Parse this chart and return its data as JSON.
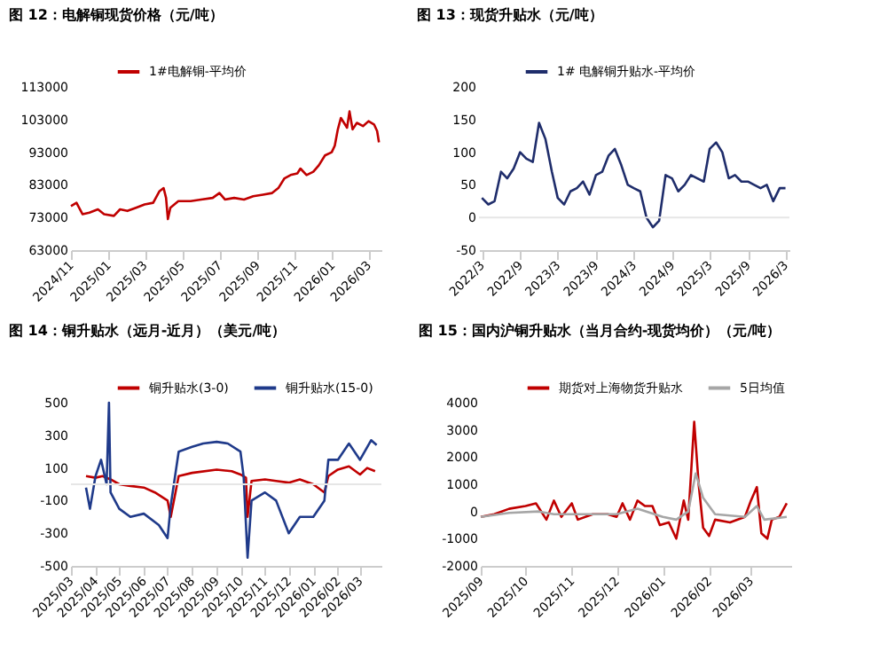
{
  "chart_data": [
    {
      "type": "line",
      "title": "图 12：电解铜现货价格（元/吨）",
      "legend": "top",
      "grid": false,
      "xlim": [
        "2024-11-01",
        "2026-03-22"
      ],
      "xticks": [
        {
          "value": "2024-11-01",
          "label": "2024/11"
        },
        {
          "value": "2025-01-01",
          "label": "2025/01"
        },
        {
          "value": "2025-03-01",
          "label": "2025/03"
        },
        {
          "value": "2025-05-01",
          "label": "2025/05"
        },
        {
          "value": "2025-07-01",
          "label": "2025/07"
        },
        {
          "value": "2025-09-01",
          "label": "2025/09"
        },
        {
          "value": "2025-11-01",
          "label": "2025/11"
        },
        {
          "value": "2026-01-01",
          "label": "2026/01"
        },
        {
          "value": "2026-03-01",
          "label": "2026/03"
        }
      ],
      "ylim": [
        63000,
        113000
      ],
      "yticks": [
        63000,
        73000,
        83000,
        93000,
        103000,
        113000
      ],
      "series": [
        {
          "name": "1#电解铜-平均价",
          "color": "#c00000",
          "x": [
            "2024-11-01",
            "2024-11-10",
            "2024-11-20",
            "2024-12-01",
            "2024-12-15",
            "2024-12-25",
            "2025-01-10",
            "2025-01-20",
            "2025-02-01",
            "2025-02-15",
            "2025-03-01",
            "2025-03-15",
            "2025-03-25",
            "2025-04-01",
            "2025-04-05",
            "2025-04-08",
            "2025-04-12",
            "2025-04-25",
            "2025-05-15",
            "2025-06-01",
            "2025-06-20",
            "2025-07-01",
            "2025-07-10",
            "2025-07-25",
            "2025-08-10",
            "2025-08-25",
            "2025-09-10",
            "2025-09-25",
            "2025-10-05",
            "2025-10-15",
            "2025-10-25",
            "2025-11-05",
            "2025-11-10",
            "2025-11-20",
            "2025-12-01",
            "2025-12-10",
            "2025-12-20",
            "2025-12-31",
            "2026-01-05",
            "2026-01-10",
            "2026-01-15",
            "2026-01-20",
            "2026-01-25",
            "2026-01-29",
            "2026-02-03",
            "2026-02-10",
            "2026-02-20",
            "2026-03-01",
            "2026-03-10",
            "2026-03-15",
            "2026-03-18"
          ],
          "values": [
            76500,
            77500,
            74000,
            74500,
            75500,
            74000,
            73500,
            75500,
            75000,
            76000,
            77000,
            77500,
            81000,
            82000,
            79000,
            72500,
            76000,
            78000,
            78000,
            78500,
            79000,
            80500,
            78500,
            79000,
            78500,
            79500,
            80000,
            80500,
            82000,
            85000,
            86000,
            86500,
            88000,
            86000,
            87000,
            89000,
            92000,
            93000,
            95000,
            100000,
            103500,
            102000,
            100500,
            105500,
            100000,
            102000,
            101000,
            102500,
            101500,
            99500,
            96000
          ]
        }
      ]
    },
    {
      "type": "line",
      "title": "图 13：现货升贴水（元/吨）",
      "legend": "top",
      "grid": false,
      "xlim": [
        "2022-02-15",
        "2026-03-20"
      ],
      "xticks": [
        {
          "value": "2022-03-01",
          "label": "2022/3"
        },
        {
          "value": "2022-09-01",
          "label": "2022/9"
        },
        {
          "value": "2023-03-01",
          "label": "2023/3"
        },
        {
          "value": "2023-09-01",
          "label": "2023/9"
        },
        {
          "value": "2024-03-01",
          "label": "2024/3"
        },
        {
          "value": "2024-09-01",
          "label": "2024/9"
        },
        {
          "value": "2025-03-01",
          "label": "2025/3"
        },
        {
          "value": "2025-09-01",
          "label": "2025/9"
        },
        {
          "value": "2026-03-01",
          "label": "2026/3"
        }
      ],
      "ylim": [
        -50,
        200
      ],
      "yticks": [
        -50,
        0,
        50,
        100,
        150,
        200
      ],
      "ref_lines": [
        {
          "axis": "y",
          "value": 0,
          "color": "#e6e6e6"
        }
      ],
      "series": [
        {
          "name": "1# 电解铜升贴水-平均价",
          "color": "#1f2d6b",
          "x": [
            "2022-03-01",
            "2022-04-01",
            "2022-05-01",
            "2022-06-01",
            "2022-07-01",
            "2022-08-01",
            "2022-09-01",
            "2022-10-01",
            "2022-11-01",
            "2022-12-01",
            "2023-01-01",
            "2023-02-01",
            "2023-03-01",
            "2023-04-01",
            "2023-05-01",
            "2023-06-01",
            "2023-07-01",
            "2023-08-01",
            "2023-09-01",
            "2023-10-01",
            "2023-11-01",
            "2023-12-01",
            "2024-01-01",
            "2024-02-01",
            "2024-03-01",
            "2024-04-01",
            "2024-05-01",
            "2024-06-01",
            "2024-07-01",
            "2024-08-01",
            "2024-09-01",
            "2024-10-01",
            "2024-11-01",
            "2024-12-01",
            "2025-01-01",
            "2025-02-01",
            "2025-03-01",
            "2025-04-01",
            "2025-05-01",
            "2025-06-01",
            "2025-07-01",
            "2025-08-01",
            "2025-09-01",
            "2025-10-01",
            "2025-11-01",
            "2025-12-01",
            "2026-01-01",
            "2026-02-01",
            "2026-03-01"
          ],
          "values": [
            30,
            20,
            25,
            70,
            60,
            75,
            100,
            90,
            85,
            145,
            120,
            70,
            30,
            20,
            40,
            45,
            55,
            35,
            65,
            70,
            95,
            105,
            80,
            50,
            45,
            40,
            0,
            -15,
            -5,
            65,
            60,
            40,
            50,
            65,
            60,
            55,
            105,
            115,
            100,
            60,
            65,
            55,
            55,
            50,
            45,
            50,
            25,
            45,
            45
          ]
        }
      ]
    },
    {
      "type": "line",
      "title": "图 14：铜升贴水（远月-近月）（美元/吨）",
      "legend": "top",
      "grid": false,
      "xlim": [
        "2025-03-01",
        "2026-03-28"
      ],
      "xticks": [
        {
          "value": "2025-03-01",
          "label": "2025/03"
        },
        {
          "value": "2025-04-01",
          "label": "2025/04"
        },
        {
          "value": "2025-05-01",
          "label": "2025/05"
        },
        {
          "value": "2025-06-01",
          "label": "2025/06"
        },
        {
          "value": "2025-07-01",
          "label": "2025/07"
        },
        {
          "value": "2025-08-01",
          "label": "2025/08"
        },
        {
          "value": "2025-09-01",
          "label": "2025/09"
        },
        {
          "value": "2025-10-01",
          "label": "2025/10"
        },
        {
          "value": "2025-11-01",
          "label": "2025/11"
        },
        {
          "value": "2025-12-01",
          "label": "2025/12"
        },
        {
          "value": "2026-01-01",
          "label": "2026/01"
        },
        {
          "value": "2026-02-01",
          "label": "2026/02"
        },
        {
          "value": "2026-03-01",
          "label": "2026/03"
        }
      ],
      "ylim": [
        -500,
        500
      ],
      "yticks": [
        -500,
        -300,
        -100,
        100,
        300,
        500
      ],
      "ref_lines": [
        {
          "axis": "y",
          "value": 0,
          "color": "#e6e6e6"
        }
      ],
      "series": [
        {
          "name": "铜升贴水(3-0)",
          "color": "#c00000",
          "x": [
            "2025-03-20",
            "2025-04-01",
            "2025-04-10",
            "2025-04-20",
            "2025-05-01",
            "2025-05-15",
            "2025-06-01",
            "2025-06-15",
            "2025-07-01",
            "2025-07-05",
            "2025-07-15",
            "2025-08-01",
            "2025-09-01",
            "2025-09-20",
            "2025-10-01",
            "2025-10-08",
            "2025-10-10",
            "2025-10-15",
            "2025-11-01",
            "2025-11-15",
            "2025-12-01",
            "2025-12-15",
            "2026-01-01",
            "2026-01-15",
            "2026-01-20",
            "2026-02-01",
            "2026-02-15",
            "2026-03-01",
            "2026-03-10",
            "2026-03-20"
          ],
          "values": [
            50,
            40,
            50,
            30,
            0,
            -10,
            -20,
            -50,
            -100,
            -200,
            50,
            70,
            90,
            80,
            60,
            40,
            -200,
            20,
            30,
            20,
            10,
            30,
            0,
            -50,
            50,
            90,
            110,
            60,
            100,
            80
          ]
        },
        {
          "name": "铜升贴水(15-0)",
          "color": "#1f3a8a",
          "x": [
            "2025-03-20",
            "2025-03-25",
            "2025-04-01",
            "2025-04-08",
            "2025-04-15",
            "2025-04-18",
            "2025-04-20",
            "2025-05-01",
            "2025-05-15",
            "2025-06-01",
            "2025-06-20",
            "2025-07-01",
            "2025-07-05",
            "2025-07-15",
            "2025-08-01",
            "2025-08-15",
            "2025-09-01",
            "2025-09-15",
            "2025-10-01",
            "2025-10-05",
            "2025-10-10",
            "2025-10-15",
            "2025-11-01",
            "2025-11-15",
            "2025-12-01",
            "2025-12-15",
            "2026-01-01",
            "2026-01-15",
            "2026-01-20",
            "2026-02-01",
            "2026-02-15",
            "2026-03-01",
            "2026-03-15",
            "2026-03-22"
          ],
          "values": [
            -20,
            -150,
            50,
            150,
            0,
            500,
            -50,
            -150,
            -200,
            -180,
            -250,
            -330,
            -130,
            200,
            230,
            250,
            260,
            250,
            200,
            50,
            -450,
            -100,
            -50,
            -100,
            -300,
            -200,
            -200,
            -100,
            150,
            150,
            250,
            150,
            270,
            240
          ]
        }
      ]
    },
    {
      "type": "line",
      "title": "图 15：国内沪铜升贴水（当月合约-现货均价）（元/吨）",
      "legend": "top",
      "grid": false,
      "xlim": [
        "2025-09-01",
        "2026-03-28"
      ],
      "xticks": [
        {
          "value": "2025-09-01",
          "label": "2025/09"
        },
        {
          "value": "2025-10-01",
          "label": "2025/10"
        },
        {
          "value": "2025-11-01",
          "label": "2025/11"
        },
        {
          "value": "2025-12-01",
          "label": "2025/12"
        },
        {
          "value": "2026-01-01",
          "label": "2026/01"
        },
        {
          "value": "2026-02-01",
          "label": "2026/02"
        },
        {
          "value": "2026-03-01",
          "label": "2026/03"
        }
      ],
      "ylim": [
        -2000,
        4000
      ],
      "yticks": [
        -2000,
        -1000,
        0,
        1000,
        2000,
        3000,
        4000
      ],
      "series": [
        {
          "name": "期货对上海物货升贴水",
          "color": "#c00000",
          "x": [
            "2025-09-01",
            "2025-09-10",
            "2025-09-20",
            "2025-10-01",
            "2025-10-08",
            "2025-10-15",
            "2025-10-20",
            "2025-10-25",
            "2025-11-01",
            "2025-11-05",
            "2025-11-15",
            "2025-11-25",
            "2025-12-01",
            "2025-12-05",
            "2025-12-10",
            "2025-12-15",
            "2025-12-20",
            "2025-12-25",
            "2025-12-30",
            "2026-01-05",
            "2026-01-10",
            "2026-01-15",
            "2026-01-18",
            "2026-01-22",
            "2026-01-25",
            "2026-01-28",
            "2026-02-01",
            "2026-02-05",
            "2026-02-15",
            "2026-02-25",
            "2026-03-01",
            "2026-03-05",
            "2026-03-08",
            "2026-03-12",
            "2026-03-15",
            "2026-03-20",
            "2026-03-25"
          ],
          "values": [
            -200,
            -100,
            100,
            200,
            300,
            -300,
            400,
            -200,
            300,
            -300,
            -100,
            -100,
            -200,
            300,
            -300,
            400,
            200,
            200,
            -500,
            -400,
            -1000,
            400,
            -300,
            3300,
            1000,
            -600,
            -900,
            -300,
            -400,
            -200,
            400,
            900,
            -800,
            -1000,
            -300,
            -200,
            300
          ]
        },
        {
          "name": "5日均值",
          "color": "#a6a6a6",
          "x": [
            "2025-09-01",
            "2025-09-20",
            "2025-10-10",
            "2025-10-20",
            "2025-11-10",
            "2025-12-01",
            "2025-12-15",
            "2026-01-01",
            "2026-01-10",
            "2026-01-18",
            "2026-01-23",
            "2026-01-28",
            "2026-02-05",
            "2026-02-25",
            "2026-03-05",
            "2026-03-10",
            "2026-03-25"
          ],
          "values": [
            -200,
            -50,
            0,
            -100,
            -100,
            -100,
            100,
            -200,
            -300,
            0,
            1400,
            500,
            -100,
            -200,
            200,
            -300,
            -200
          ]
        }
      ]
    }
  ]
}
